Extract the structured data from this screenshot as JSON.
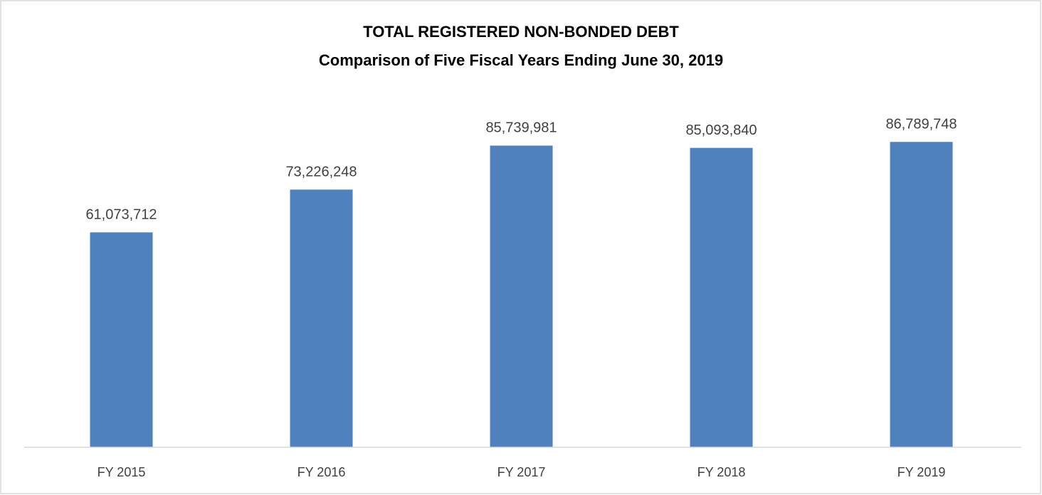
{
  "chart_data": {
    "type": "bar",
    "title": "TOTAL REGISTERED NON-BONDED DEBT",
    "subtitle": "Comparison of Five Fiscal Years Ending June 30, 2019",
    "categories": [
      "FY 2015",
      "FY 2016",
      "FY 2017",
      "FY 2018",
      "FY 2019"
    ],
    "values": [
      61073712,
      73226248,
      85739981,
      85093840,
      86789748
    ],
    "value_labels": [
      "61,073,712",
      "73,226,248",
      "85,739,981",
      "85,093,840",
      "86,789,748"
    ],
    "color": "#4f81bd",
    "ylim": [
      0,
      100000000
    ]
  }
}
